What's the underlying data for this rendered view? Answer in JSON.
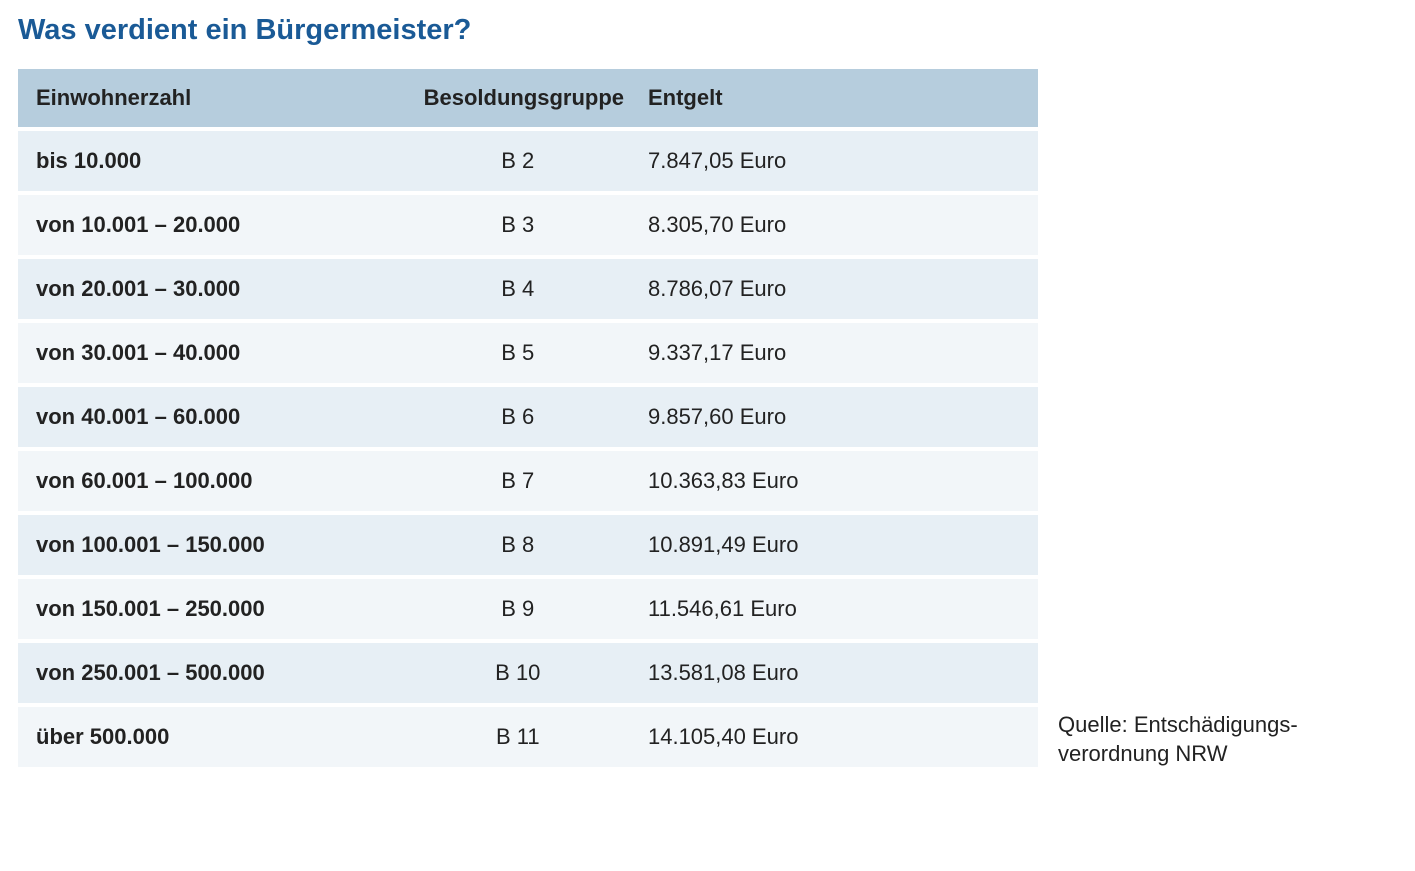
{
  "title": "Was verdient ein Bürgermeister?",
  "table": {
    "type": "table",
    "columns": [
      {
        "label": "Einwohnerzahl",
        "align": "left",
        "bold_cells": true
      },
      {
        "label": "Besoldungsgruppe",
        "align": "center",
        "bold_cells": false
      },
      {
        "label": "Entgelt",
        "align": "left",
        "bold_cells": false
      }
    ],
    "column_widths_pct": [
      38,
      22,
      40
    ],
    "header_bg": "#b6cddd",
    "row_bg_odd": "#e7eff5",
    "row_bg_even": "#f2f6f9",
    "row_border_color": "#ffffff",
    "text_color": "#222222",
    "header_fontsize": 22,
    "cell_fontsize": 22,
    "rows": [
      {
        "population": "bis 10.000",
        "grade": "B 2",
        "pay": "7.847,05 Euro"
      },
      {
        "population": "von 10.001 – 20.000",
        "grade": "B 3",
        "pay": "8.305,70 Euro"
      },
      {
        "population": "von 20.001 – 30.000",
        "grade": "B 4",
        "pay": "8.786,07 Euro"
      },
      {
        "population": "von 30.001 – 40.000",
        "grade": "B 5",
        "pay": "9.337,17 Euro"
      },
      {
        "population": "von 40.001 – 60.000",
        "grade": "B 6",
        "pay": "9.857,60 Euro"
      },
      {
        "population": "von 60.001 – 100.000",
        "grade": "B 7",
        "pay": "10.363,83 Euro"
      },
      {
        "population": "von 100.001 – 150.000",
        "grade": "B 8",
        "pay": "10.891,49 Euro"
      },
      {
        "population": "von 150.001 – 250.000",
        "grade": "B 9",
        "pay": "11.546,61 Euro"
      },
      {
        "population": "von 250.001 – 500.000",
        "grade": "B 10",
        "pay": "13.581,08 Euro"
      },
      {
        "population": "über 500.000",
        "grade": "B 11",
        "pay": "14.105,40 Euro"
      }
    ]
  },
  "source_line1": "Quelle: Entschädigungs-",
  "source_line2": "verordnung NRW",
  "title_color": "#1a5a96",
  "title_fontsize": 29
}
